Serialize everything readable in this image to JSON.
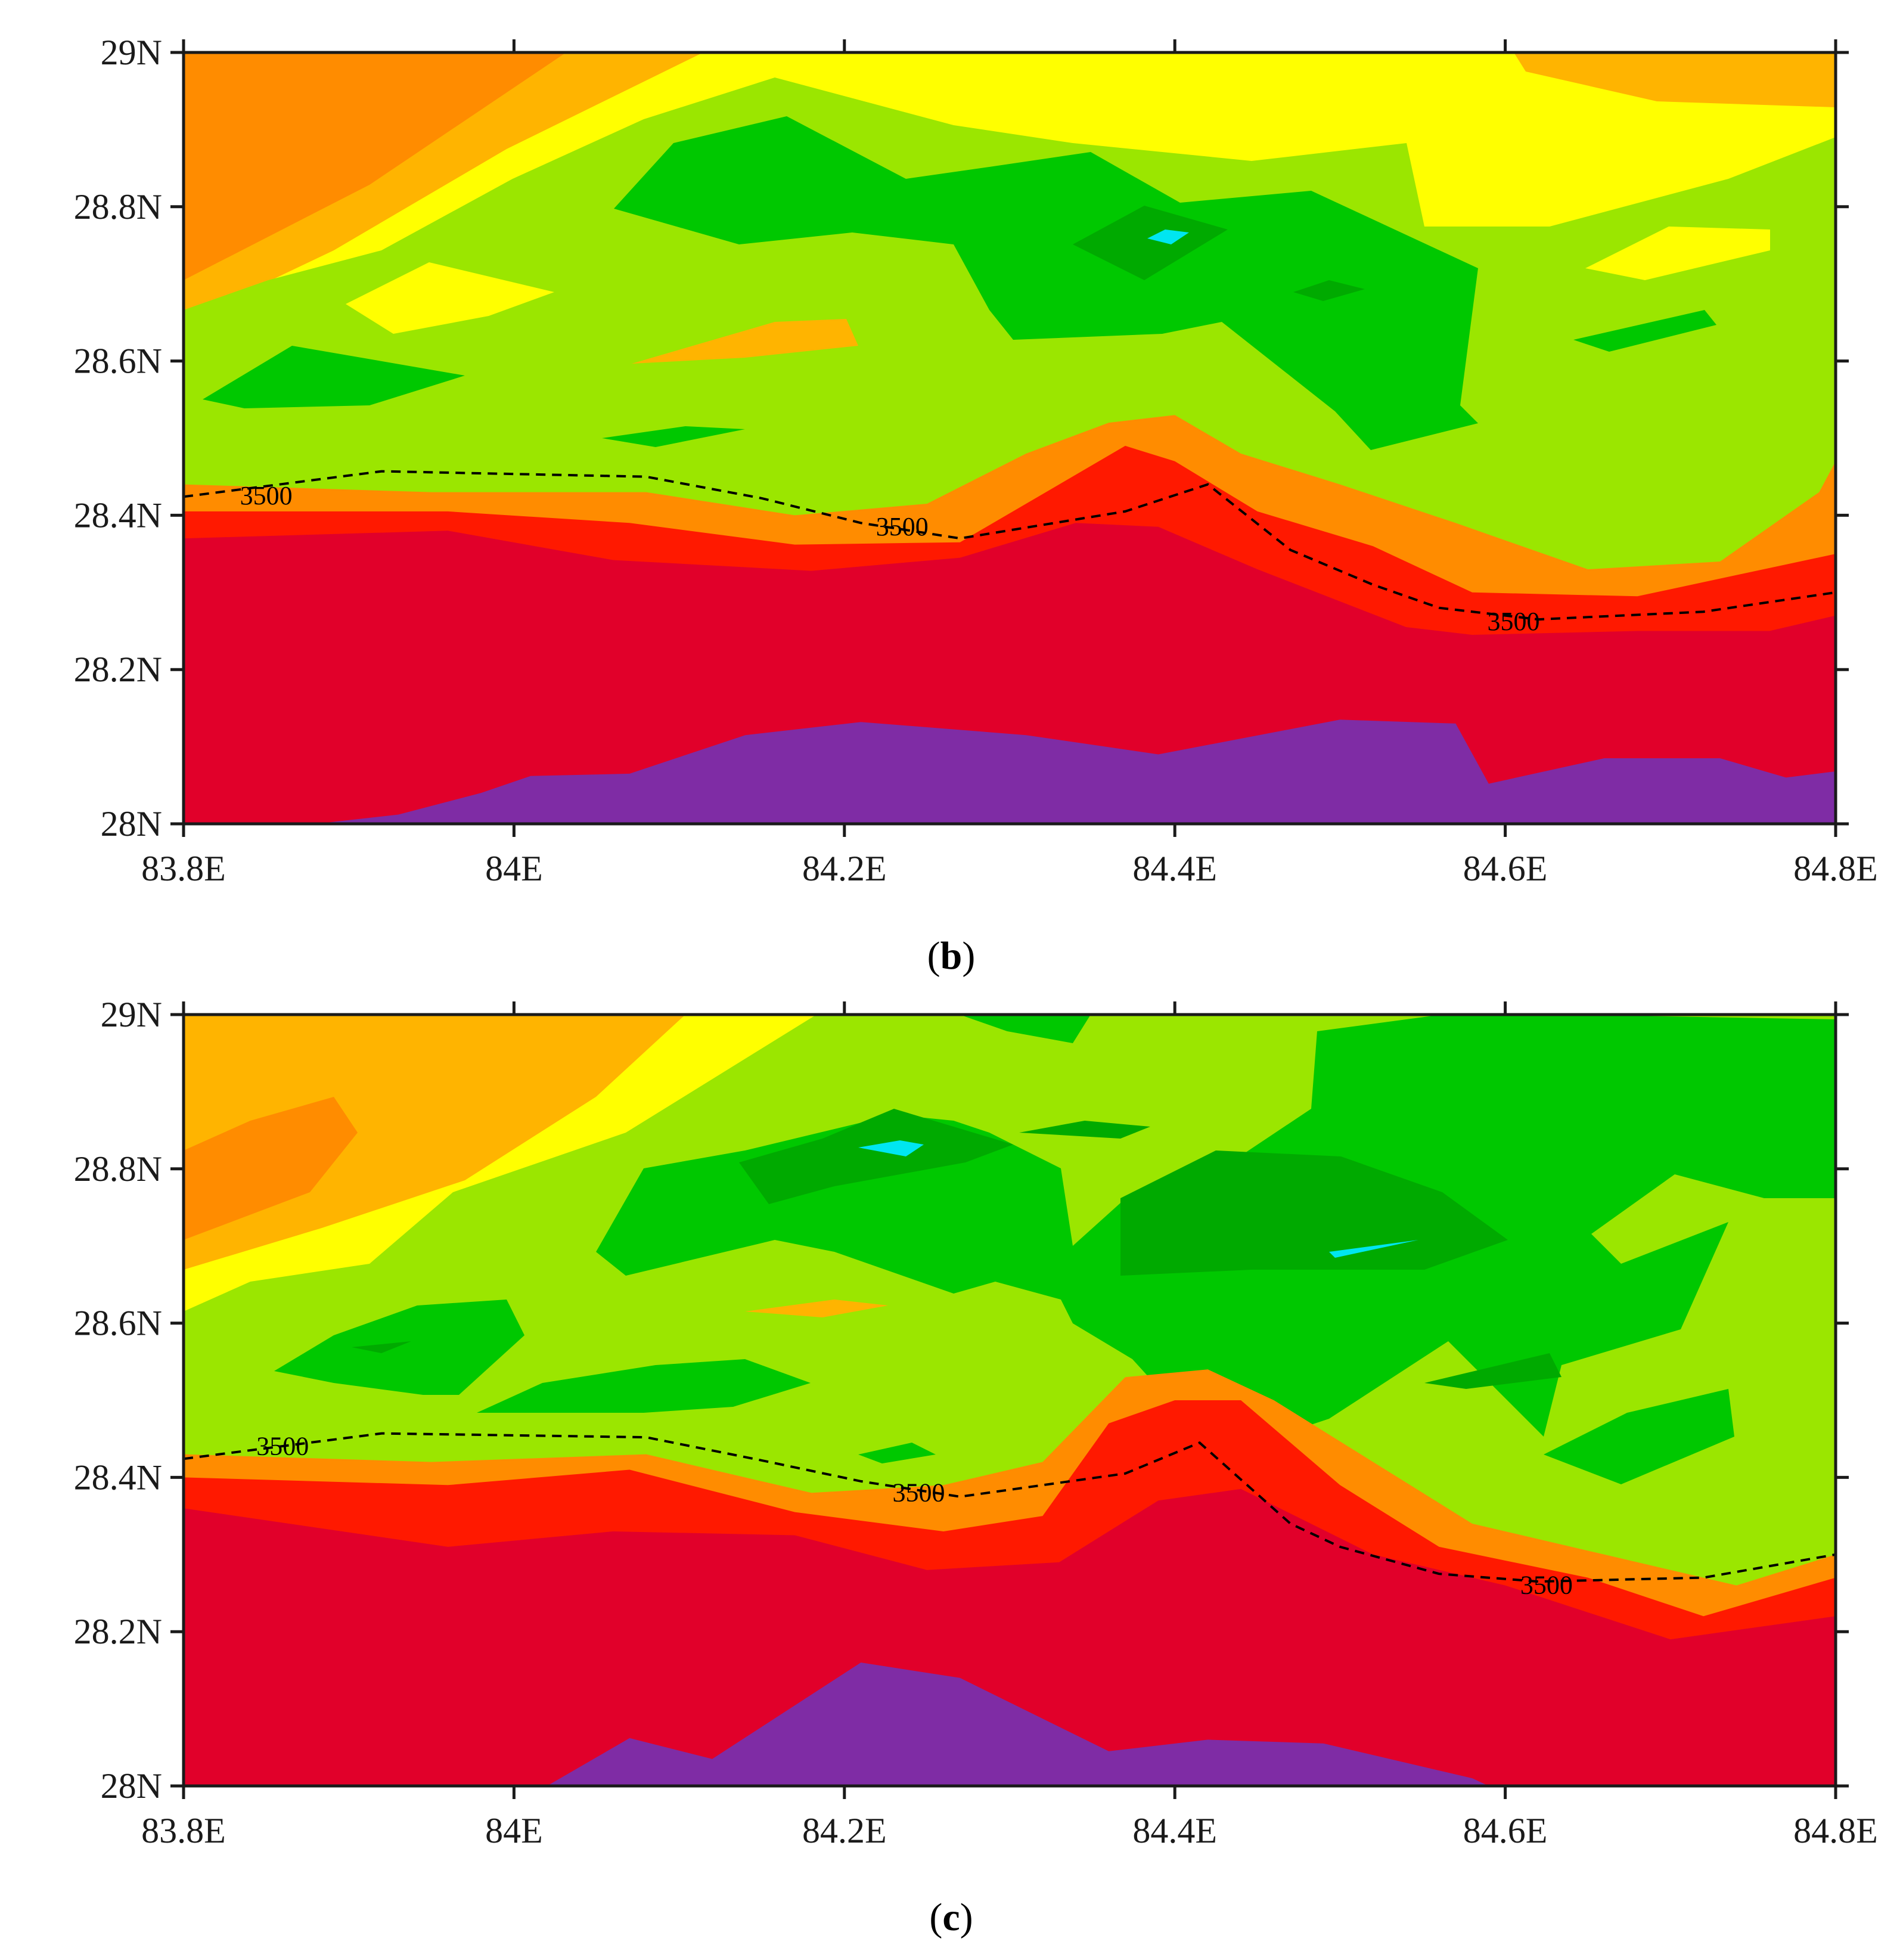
{
  "chart_data": [
    {
      "type": "heatmap",
      "panel_label": "b",
      "x_ticks": [
        "83.8E",
        "84E",
        "84.2E",
        "84.4E",
        "84.6E",
        "84.8E"
      ],
      "y_ticks": [
        "28N",
        "28.2N",
        "28.4N",
        "28.6N",
        "28.8N",
        "29N"
      ],
      "xlim": [
        83.8,
        84.8
      ],
      "ylim": [
        28.0,
        29.0
      ],
      "contour_label": "3500",
      "contour_line": {
        "x": [
          83.8,
          83.92,
          84.08,
          84.15,
          84.21,
          84.27,
          84.37,
          84.42,
          84.47,
          84.52,
          84.56,
          84.62,
          84.72,
          84.8
        ],
        "y": [
          28.424,
          28.457,
          28.45,
          28.422,
          28.39,
          28.37,
          28.405,
          28.44,
          28.355,
          28.31,
          28.28,
          28.265,
          28.275,
          28.3
        ]
      },
      "contour_label_positions": [
        {
          "x": 83.85,
          "y": 28.425
        },
        {
          "x": 84.235,
          "y": 28.385
        },
        {
          "x": 84.605,
          "y": 28.262
        }
      ],
      "color_bands": [
        {
          "color": "#7F2CA5",
          "boundary": {
            "x": [
              83.8,
              83.88,
              83.93,
              83.98,
              84.01,
              84.07,
              84.14,
              84.21,
              84.31,
              84.39,
              84.5,
              84.57,
              84.59,
              84.66,
              84.73,
              84.77,
              84.8
            ],
            "y": [
              27.99,
              28.0,
              28.012,
              28.04,
              28.062,
              28.065,
              28.115,
              28.132,
              28.115,
              28.09,
              28.135,
              28.13,
              28.052,
              28.085,
              28.085,
              28.06,
              28.068
            ]
          }
        },
        {
          "color": "#E1002A",
          "boundary": {
            "x": [
              83.8,
              83.96,
              84.06,
              84.18,
              84.27,
              84.34,
              84.39,
              84.45,
              84.54,
              84.58,
              84.68,
              84.76,
              84.8
            ],
            "y": [
              28.37,
              28.38,
              28.342,
              28.328,
              28.345,
              28.39,
              28.385,
              28.33,
              28.255,
              28.245,
              28.25,
              28.25,
              28.27
            ]
          }
        },
        {
          "color": "#FF1900",
          "boundary": {
            "x": [
              83.8,
              83.96,
              84.07,
              84.17,
              84.27,
              84.33,
              84.37,
              84.4,
              84.45,
              84.52,
              84.58,
              84.68,
              84.8
            ],
            "y": [
              28.405,
              28.405,
              28.39,
              28.362,
              28.365,
              28.44,
              28.49,
              28.47,
              28.405,
              28.36,
              28.3,
              28.295,
              28.35
            ]
          }
        },
        {
          "color": "#FF8C00",
          "boundary": {
            "x": [
              83.8,
              83.95,
              84.08,
              84.17,
              84.25,
              84.31,
              84.36,
              84.4,
              84.44,
              84.5,
              84.57,
              84.65,
              84.73,
              84.79,
              84.8
            ],
            "y": [
              28.44,
              28.43,
              28.43,
              28.4,
              28.415,
              28.48,
              28.52,
              28.53,
              28.48,
              28.44,
              28.39,
              28.33,
              28.34,
              28.43,
              28.47
            ]
          }
        },
        {
          "color": "#FFB400",
          "boundary": {
            "x": [
              83.8,
              83.9,
              84.05,
              84.18,
              84.26,
              84.3,
              84.38,
              84.42,
              84.47,
              84.53,
              84.6,
              84.67,
              84.74,
              84.8
            ],
            "y": [
              28.47,
              28.46,
              28.45,
              28.41,
              28.43,
              28.54,
              28.57,
              28.56,
              28.51,
              28.46,
              28.42,
              28.36,
              28.37,
              28.52
            ]
          }
        },
        {
          "color": "#FFFF00",
          "boundary": {
            "x": [
              83.8,
              83.95,
              84.08,
              84.16,
              84.24,
              84.29,
              84.4,
              84.46,
              84.54,
              84.62,
              84.7,
              84.8
            ],
            "y": [
              28.52,
              28.48,
              28.46,
              28.46,
              28.47,
              28.56,
              28.6,
              28.56,
              28.49,
              28.44,
              28.41,
              28.55
            ]
          }
        },
        {
          "color": "#9BE600",
          "boundary": {
            "x": [
              83.8,
              83.92,
              84.04,
              84.14,
              84.22,
              84.3,
              84.38,
              84.46,
              84.52,
              84.6,
              84.68,
              84.76,
              84.8
            ],
            "y": [
              28.66,
              28.72,
              28.82,
              28.86,
              28.8,
              28.72,
              28.72,
              28.68,
              28.62,
              28.56,
              28.58,
              28.66,
              28.72
            ]
          }
        },
        {
          "color": "#00C800",
          "boundary": {
            "x": [
              84.07,
              84.14,
              84.24,
              84.35,
              84.42,
              84.49,
              84.54,
              84.59,
              84.6
            ],
            "y": [
              28.8,
              28.89,
              28.82,
              28.86,
              28.83,
              28.76,
              28.68,
              28.58,
              28.52
            ]
          }
        },
        {
          "color": "#00AA00",
          "boundary": {
            "x": [
              84.35,
              84.38,
              84.41,
              84.44,
              84.47
            ],
            "y": [
              28.74,
              28.78,
              28.8,
              28.77,
              28.73
            ]
          }
        },
        {
          "color": "#00E6F0",
          "boundary": {
            "x": [
              84.39,
              84.4,
              84.41
            ],
            "y": [
              28.755,
              28.77,
              28.76
            ]
          }
        }
      ]
    },
    {
      "type": "heatmap",
      "panel_label": "c",
      "x_ticks": [
        "83.8E",
        "84E",
        "84.2E",
        "84.4E",
        "84.6E",
        "84.8E"
      ],
      "y_ticks": [
        "28N",
        "28.2N",
        "28.4N",
        "28.6N",
        "28.8N",
        "29N"
      ],
      "xlim": [
        83.8,
        84.8
      ],
      "ylim": [
        28.0,
        29.0
      ],
      "contour_label": "3500",
      "contour_line": {
        "x": [
          83.8,
          83.92,
          84.08,
          84.15,
          84.21,
          84.27,
          84.37,
          84.415,
          84.47,
          84.5,
          84.56,
          84.62,
          84.72,
          84.8
        ],
        "y": [
          28.424,
          28.457,
          28.452,
          28.422,
          28.395,
          28.375,
          28.405,
          28.445,
          28.34,
          28.31,
          28.275,
          28.265,
          28.27,
          28.3
        ]
      },
      "contour_label_positions": [
        {
          "x": 83.86,
          "y": 28.44
        },
        {
          "x": 84.245,
          "y": 28.38
        },
        {
          "x": 84.625,
          "y": 28.26
        }
      ],
      "color_bands": [
        {
          "color": "#7F2CA5",
          "boundary": {
            "x": [
              83.8,
              84.02,
              84.07,
              84.12,
              84.21,
              84.27,
              84.36,
              84.42,
              84.49,
              84.58,
              84.6,
              84.8
            ],
            "y": [
              27.99,
              28.0,
              28.062,
              28.035,
              28.16,
              28.14,
              28.045,
              28.06,
              28.055,
              28.01,
              27.99,
              27.99
            ]
          }
        },
        {
          "color": "#E1002A",
          "boundary": {
            "x": [
              83.8,
              83.96,
              84.06,
              84.17,
              84.25,
              84.33,
              84.39,
              84.44,
              84.52,
              84.6,
              84.7,
              84.8
            ],
            "y": [
              28.36,
              28.31,
              28.33,
              28.325,
              28.28,
              28.29,
              28.37,
              28.385,
              28.3,
              28.26,
              28.19,
              28.22
            ]
          }
        },
        {
          "color": "#FF1900",
          "boundary": {
            "x": [
              83.8,
              83.96,
              84.07,
              84.17,
              84.26,
              84.32,
              84.36,
              84.4,
              84.44,
              84.5,
              84.56,
              84.65,
              84.72,
              84.8
            ],
            "y": [
              28.4,
              28.39,
              28.41,
              28.355,
              28.33,
              28.35,
              28.47,
              28.5,
              28.5,
              28.39,
              28.31,
              28.27,
              28.22,
              28.27
            ]
          }
        },
        {
          "color": "#FF8C00",
          "boundary": {
            "x": [
              83.8,
              83.95,
              84.08,
              84.18,
              84.26,
              84.32,
              84.37,
              84.42,
              84.46,
              84.52,
              84.58,
              84.66,
              84.74,
              84.8
            ],
            "y": [
              28.43,
              28.42,
              28.43,
              28.38,
              28.39,
              28.42,
              28.53,
              28.54,
              28.5,
              28.42,
              28.34,
              28.3,
              28.26,
              28.3
            ]
          }
        },
        {
          "color": "#FFB400",
          "boundary": {
            "x": [
              83.8,
              83.9,
              84.05,
              84.18,
              84.26,
              84.29,
              84.39,
              84.44,
              84.48,
              84.54,
              84.62,
              84.7,
              84.8
            ],
            "y": [
              28.46,
              28.46,
              28.45,
              28.42,
              28.45,
              28.55,
              28.58,
              28.57,
              28.5,
              28.42,
              28.35,
              28.31,
              28.33
            ]
          }
        },
        {
          "color": "#FFFF00",
          "boundary": {
            "x": [
              83.8,
              83.9,
              84.05,
              84.17,
              84.26,
              84.3,
              84.4,
              84.47,
              84.53,
              84.62,
              84.7,
              84.8
            ],
            "y": [
              28.52,
              28.5,
              28.48,
              28.48,
              28.5,
              28.6,
              28.62,
              28.58,
              28.47,
              28.41,
              28.37,
              28.36
            ]
          }
        },
        {
          "color": "#9BE600",
          "boundary": {
            "x": [
              83.8,
              83.85,
              83.96,
              84.06,
              84.14,
              84.2,
              84.26,
              84.34,
              84.44,
              84.52,
              84.58,
              84.64,
              84.72,
              84.8
            ],
            "y": [
              28.63,
              28.72,
              28.88,
              28.95,
              29.0,
              29.0,
              28.97,
              28.86,
              28.8,
              28.98,
              28.85,
              28.73,
              28.68,
              28.72
            ]
          }
        },
        {
          "color": "#00C800",
          "boundary": {
            "x": [
              84.05,
              84.12,
              84.22,
              84.3,
              84.38,
              84.46,
              84.52,
              84.58,
              84.64,
              84.7,
              84.8
            ],
            "y": [
              28.7,
              28.82,
              28.86,
              28.84,
              28.77,
              28.72,
              28.62,
              28.55,
              28.48,
              28.42,
              28.5
            ]
          }
        },
        {
          "color": "#00AA00",
          "boundary": {
            "x": [
              84.17,
              84.21,
              84.28,
              84.3,
              84.57,
              84.6
            ],
            "y": [
              28.77,
              28.85,
              28.78,
              28.76,
              28.64,
              28.62
            ]
          }
        },
        {
          "color": "#00E6F0",
          "boundary": {
            "x": [
              84.23,
              84.25,
              84.5,
              84.52
            ],
            "y": [
              28.82,
              28.825,
              28.69,
              28.7
            ]
          }
        }
      ]
    }
  ],
  "captions": {
    "b": {
      "open": "(",
      "letter": "b",
      "close": ")"
    },
    "c": {
      "open": "(",
      "letter": "c",
      "close": ")"
    }
  }
}
